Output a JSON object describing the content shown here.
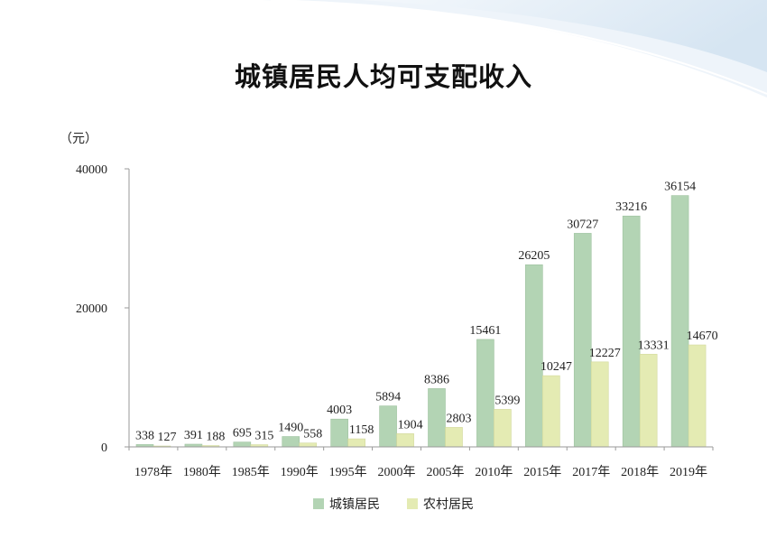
{
  "chart_data": {
    "type": "bar",
    "title": "城镇居民人均可支配收入",
    "xlabel": "",
    "ylabel": "（元）",
    "ylim": [
      0,
      40000
    ],
    "yticks": [
      0,
      20000,
      40000
    ],
    "grid": false,
    "legend": "bottom",
    "categories": [
      "1978年",
      "1980年",
      "1985年",
      "1990年",
      "1995年",
      "2000年",
      "2005年",
      "2010年",
      "2015年",
      "2017年",
      "2018年",
      "2019年"
    ],
    "series": [
      {
        "name": "城镇居民",
        "color": "#b3d4b4",
        "values": [
          338,
          391,
          695,
          1490,
          4003,
          5894,
          8386,
          15461,
          26205,
          30727,
          33216,
          36154
        ]
      },
      {
        "name": "农村居民",
        "color": "#e4ebb3",
        "values": [
          127,
          188,
          315,
          558,
          1158,
          1904,
          2803,
          5399,
          10247,
          12227,
          13331,
          14670
        ]
      }
    ]
  }
}
